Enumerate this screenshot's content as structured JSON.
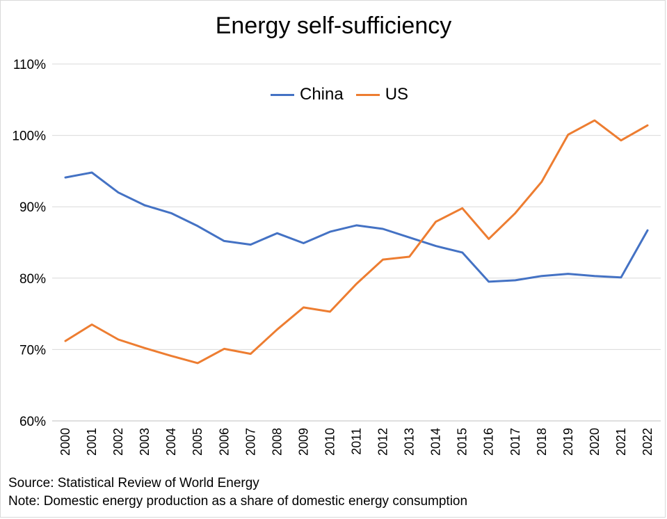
{
  "chart_data": {
    "type": "line",
    "title": "Energy self-sufficiency",
    "xlabel": "",
    "ylabel": "",
    "ylim": [
      60,
      110
    ],
    "y_ticks": [
      "60%",
      "70%",
      "80%",
      "90%",
      "100%",
      "110%"
    ],
    "y_tick_values": [
      60,
      70,
      80,
      90,
      100,
      110
    ],
    "categories": [
      "2000",
      "2001",
      "2002",
      "2003",
      "2004",
      "2005",
      "2006",
      "2007",
      "2008",
      "2009",
      "2010",
      "2011",
      "2012",
      "2013",
      "2014",
      "2015",
      "2016",
      "2017",
      "2018",
      "2019",
      "2020",
      "2021",
      "2022"
    ],
    "series": [
      {
        "name": "China",
        "color": "#4472c4",
        "values": [
          94.1,
          94.8,
          92.0,
          90.2,
          89.1,
          87.3,
          85.2,
          84.7,
          86.3,
          84.9,
          86.5,
          87.4,
          86.9,
          85.7,
          84.5,
          83.6,
          79.5,
          79.7,
          80.3,
          80.6,
          80.3,
          80.1,
          86.7
        ]
      },
      {
        "name": "US",
        "color": "#ed7d31",
        "values": [
          71.2,
          73.5,
          71.4,
          70.2,
          69.1,
          68.1,
          70.1,
          69.4,
          72.8,
          75.9,
          75.3,
          79.2,
          82.6,
          83.0,
          87.9,
          89.8,
          85.5,
          89.1,
          93.5,
          100.1,
          102.1,
          99.3,
          101.4
        ]
      }
    ],
    "legend_position": "top-center",
    "grid": true,
    "source": "Source: Statistical Review of World Energy",
    "note": "Note: Domestic energy production as a share of domestic energy consumption"
  }
}
